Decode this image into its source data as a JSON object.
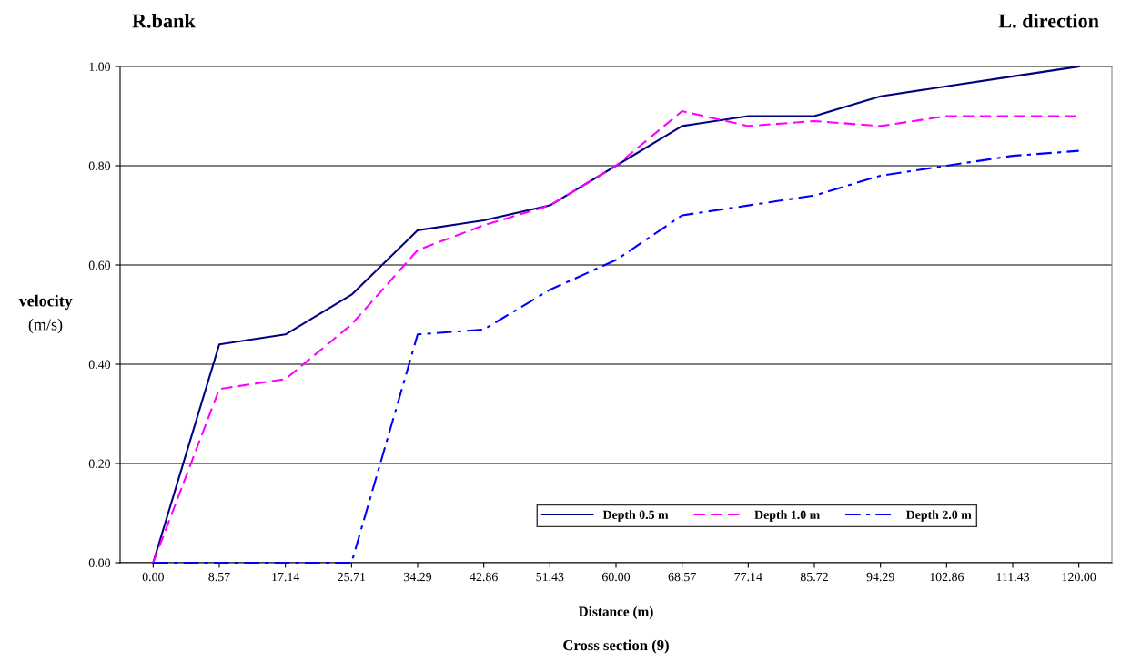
{
  "chart_data": {
    "type": "line",
    "annotations": [
      "R.bank",
      "L. direction",
      "(m/s)",
      "Cross section (9)"
    ],
    "xlabel": "Distance (m)",
    "ylabel": "velocity",
    "categories": [
      "0.00",
      "8.57",
      "17.14",
      "25.71",
      "34.29",
      "42.86",
      "51.43",
      "60.00",
      "68.57",
      "77.14",
      "85.72",
      "94.29",
      "102.86",
      "111.43",
      "120.00"
    ],
    "series": [
      {
        "name": "Depth 0.5 m",
        "color": "#000080",
        "line_style": "solid",
        "values": [
          0,
          0.44,
          0.46,
          0.54,
          0.67,
          0.69,
          0.72,
          0.8,
          0.88,
          0.9,
          0.9,
          0.94,
          0.96,
          0.98,
          1.0
        ]
      },
      {
        "name": "Depth 1.0 m",
        "color": "#ff00ff",
        "line_style": "dashed",
        "values": [
          0,
          0.35,
          0.37,
          0.48,
          0.63,
          0.68,
          0.72,
          0.8,
          0.91,
          0.88,
          0.89,
          0.88,
          0.9,
          0.9,
          0.9
        ]
      },
      {
        "name": "Depth 2.0 m",
        "color": "#0000ff",
        "line_style": "dashdot",
        "values": [
          0,
          0,
          0,
          0,
          0.46,
          0.47,
          0.55,
          0.61,
          0.7,
          0.72,
          0.74,
          0.78,
          0.8,
          0.82,
          0.83
        ]
      }
    ],
    "ylim": [
      0,
      1
    ],
    "yticks": [
      {
        "value": 0,
        "label": "0.00"
      },
      {
        "value": 0.2,
        "label": "0.20"
      },
      {
        "value": 0.4,
        "label": "0.40"
      },
      {
        "value": 0.6,
        "label": "0.60"
      },
      {
        "value": 0.8,
        "label": "0.80"
      },
      {
        "value": 1,
        "label": "1.00"
      }
    ],
    "grid": "y",
    "legend": "bottom right"
  }
}
